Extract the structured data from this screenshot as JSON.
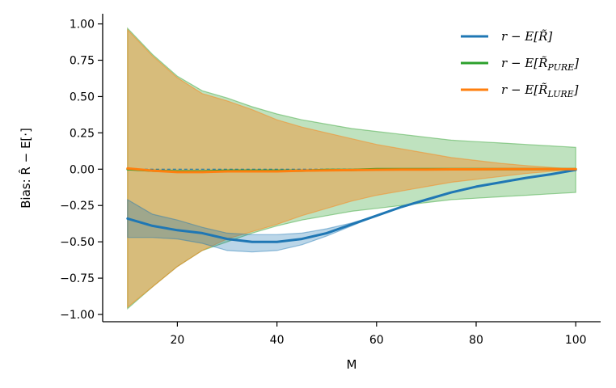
{
  "chart_data": {
    "type": "line",
    "xlabel": "M",
    "ylabel": "Bias: R̂ − E[·]",
    "xlim": [
      5,
      105
    ],
    "ylim": [
      -1.05,
      1.07
    ],
    "x_ticks": [
      20,
      40,
      60,
      80,
      100
    ],
    "y_ticks": [
      -1.0,
      -0.75,
      -0.5,
      -0.25,
      0.0,
      0.25,
      0.5,
      0.75,
      1.0
    ],
    "x_tick_labels": [
      "20",
      "40",
      "60",
      "80",
      "100"
    ],
    "y_tick_labels": [
      "−1.00",
      "−0.75",
      "−0.50",
      "−0.25",
      "0.00",
      "0.25",
      "0.50",
      "0.75",
      "1.00"
    ],
    "grid": false,
    "legend_position": "top-right",
    "reference_line": {
      "y": 0.0,
      "style": "dashed",
      "color": "#1f77b4"
    },
    "x": [
      10,
      15,
      20,
      25,
      30,
      35,
      40,
      45,
      50,
      55,
      60,
      65,
      70,
      75,
      80,
      85,
      90,
      95,
      100
    ],
    "series": [
      {
        "name": "r − E[R̃]",
        "color": "#1f77b4",
        "values": [
          -0.34,
          -0.39,
          -0.42,
          -0.44,
          -0.48,
          -0.5,
          -0.5,
          -0.48,
          -0.44,
          -0.38,
          -0.32,
          -0.26,
          -0.21,
          -0.16,
          -0.12,
          -0.09,
          -0.06,
          -0.035,
          -0.005
        ],
        "band_lower": [
          -0.47,
          -0.47,
          -0.48,
          -0.51,
          -0.56,
          -0.57,
          -0.56,
          -0.52,
          -0.46,
          -0.39,
          -0.32,
          -0.26,
          -0.21,
          -0.16,
          -0.12,
          -0.09,
          -0.06,
          -0.035,
          -0.005
        ],
        "band_upper": [
          -0.21,
          -0.31,
          -0.35,
          -0.4,
          -0.44,
          -0.45,
          -0.45,
          -0.44,
          -0.41,
          -0.37,
          -0.32,
          -0.26,
          -0.21,
          -0.16,
          -0.12,
          -0.09,
          -0.06,
          -0.035,
          -0.005
        ]
      },
      {
        "name": "r − E[R̃PURE]",
        "color": "#2ca02c",
        "values": [
          0.0,
          -0.01,
          -0.015,
          -0.015,
          -0.01,
          -0.01,
          -0.01,
          -0.01,
          -0.005,
          -0.005,
          0.0,
          0.0,
          0.0,
          0.0,
          0.0,
          0.0,
          0.0,
          0.0,
          0.0
        ],
        "band_lower": [
          -0.96,
          -0.81,
          -0.67,
          -0.56,
          -0.5,
          -0.44,
          -0.39,
          -0.35,
          -0.32,
          -0.29,
          -0.27,
          -0.25,
          -0.23,
          -0.21,
          -0.2,
          -0.19,
          -0.18,
          -0.17,
          -0.16
        ],
        "band_upper": [
          0.97,
          0.79,
          0.64,
          0.54,
          0.49,
          0.43,
          0.38,
          0.34,
          0.31,
          0.28,
          0.26,
          0.24,
          0.22,
          0.2,
          0.19,
          0.18,
          0.17,
          0.16,
          0.15
        ]
      },
      {
        "name": "r − E[R̃LURE]",
        "color": "#ff7f0e",
        "values": [
          0.005,
          -0.01,
          -0.02,
          -0.02,
          -0.015,
          -0.015,
          -0.015,
          -0.01,
          -0.008,
          -0.006,
          -0.004,
          -0.003,
          -0.002,
          -0.001,
          -0.001,
          0.0,
          0.0,
          0.0,
          0.0
        ],
        "band_lower": [
          -0.95,
          -0.81,
          -0.67,
          -0.56,
          -0.48,
          -0.43,
          -0.38,
          -0.32,
          -0.27,
          -0.22,
          -0.18,
          -0.15,
          -0.12,
          -0.09,
          -0.07,
          -0.05,
          -0.03,
          -0.015,
          0.0
        ],
        "band_upper": [
          0.96,
          0.78,
          0.63,
          0.52,
          0.47,
          0.41,
          0.34,
          0.29,
          0.25,
          0.21,
          0.17,
          0.14,
          0.11,
          0.08,
          0.06,
          0.04,
          0.025,
          0.012,
          0.0
        ]
      }
    ]
  }
}
